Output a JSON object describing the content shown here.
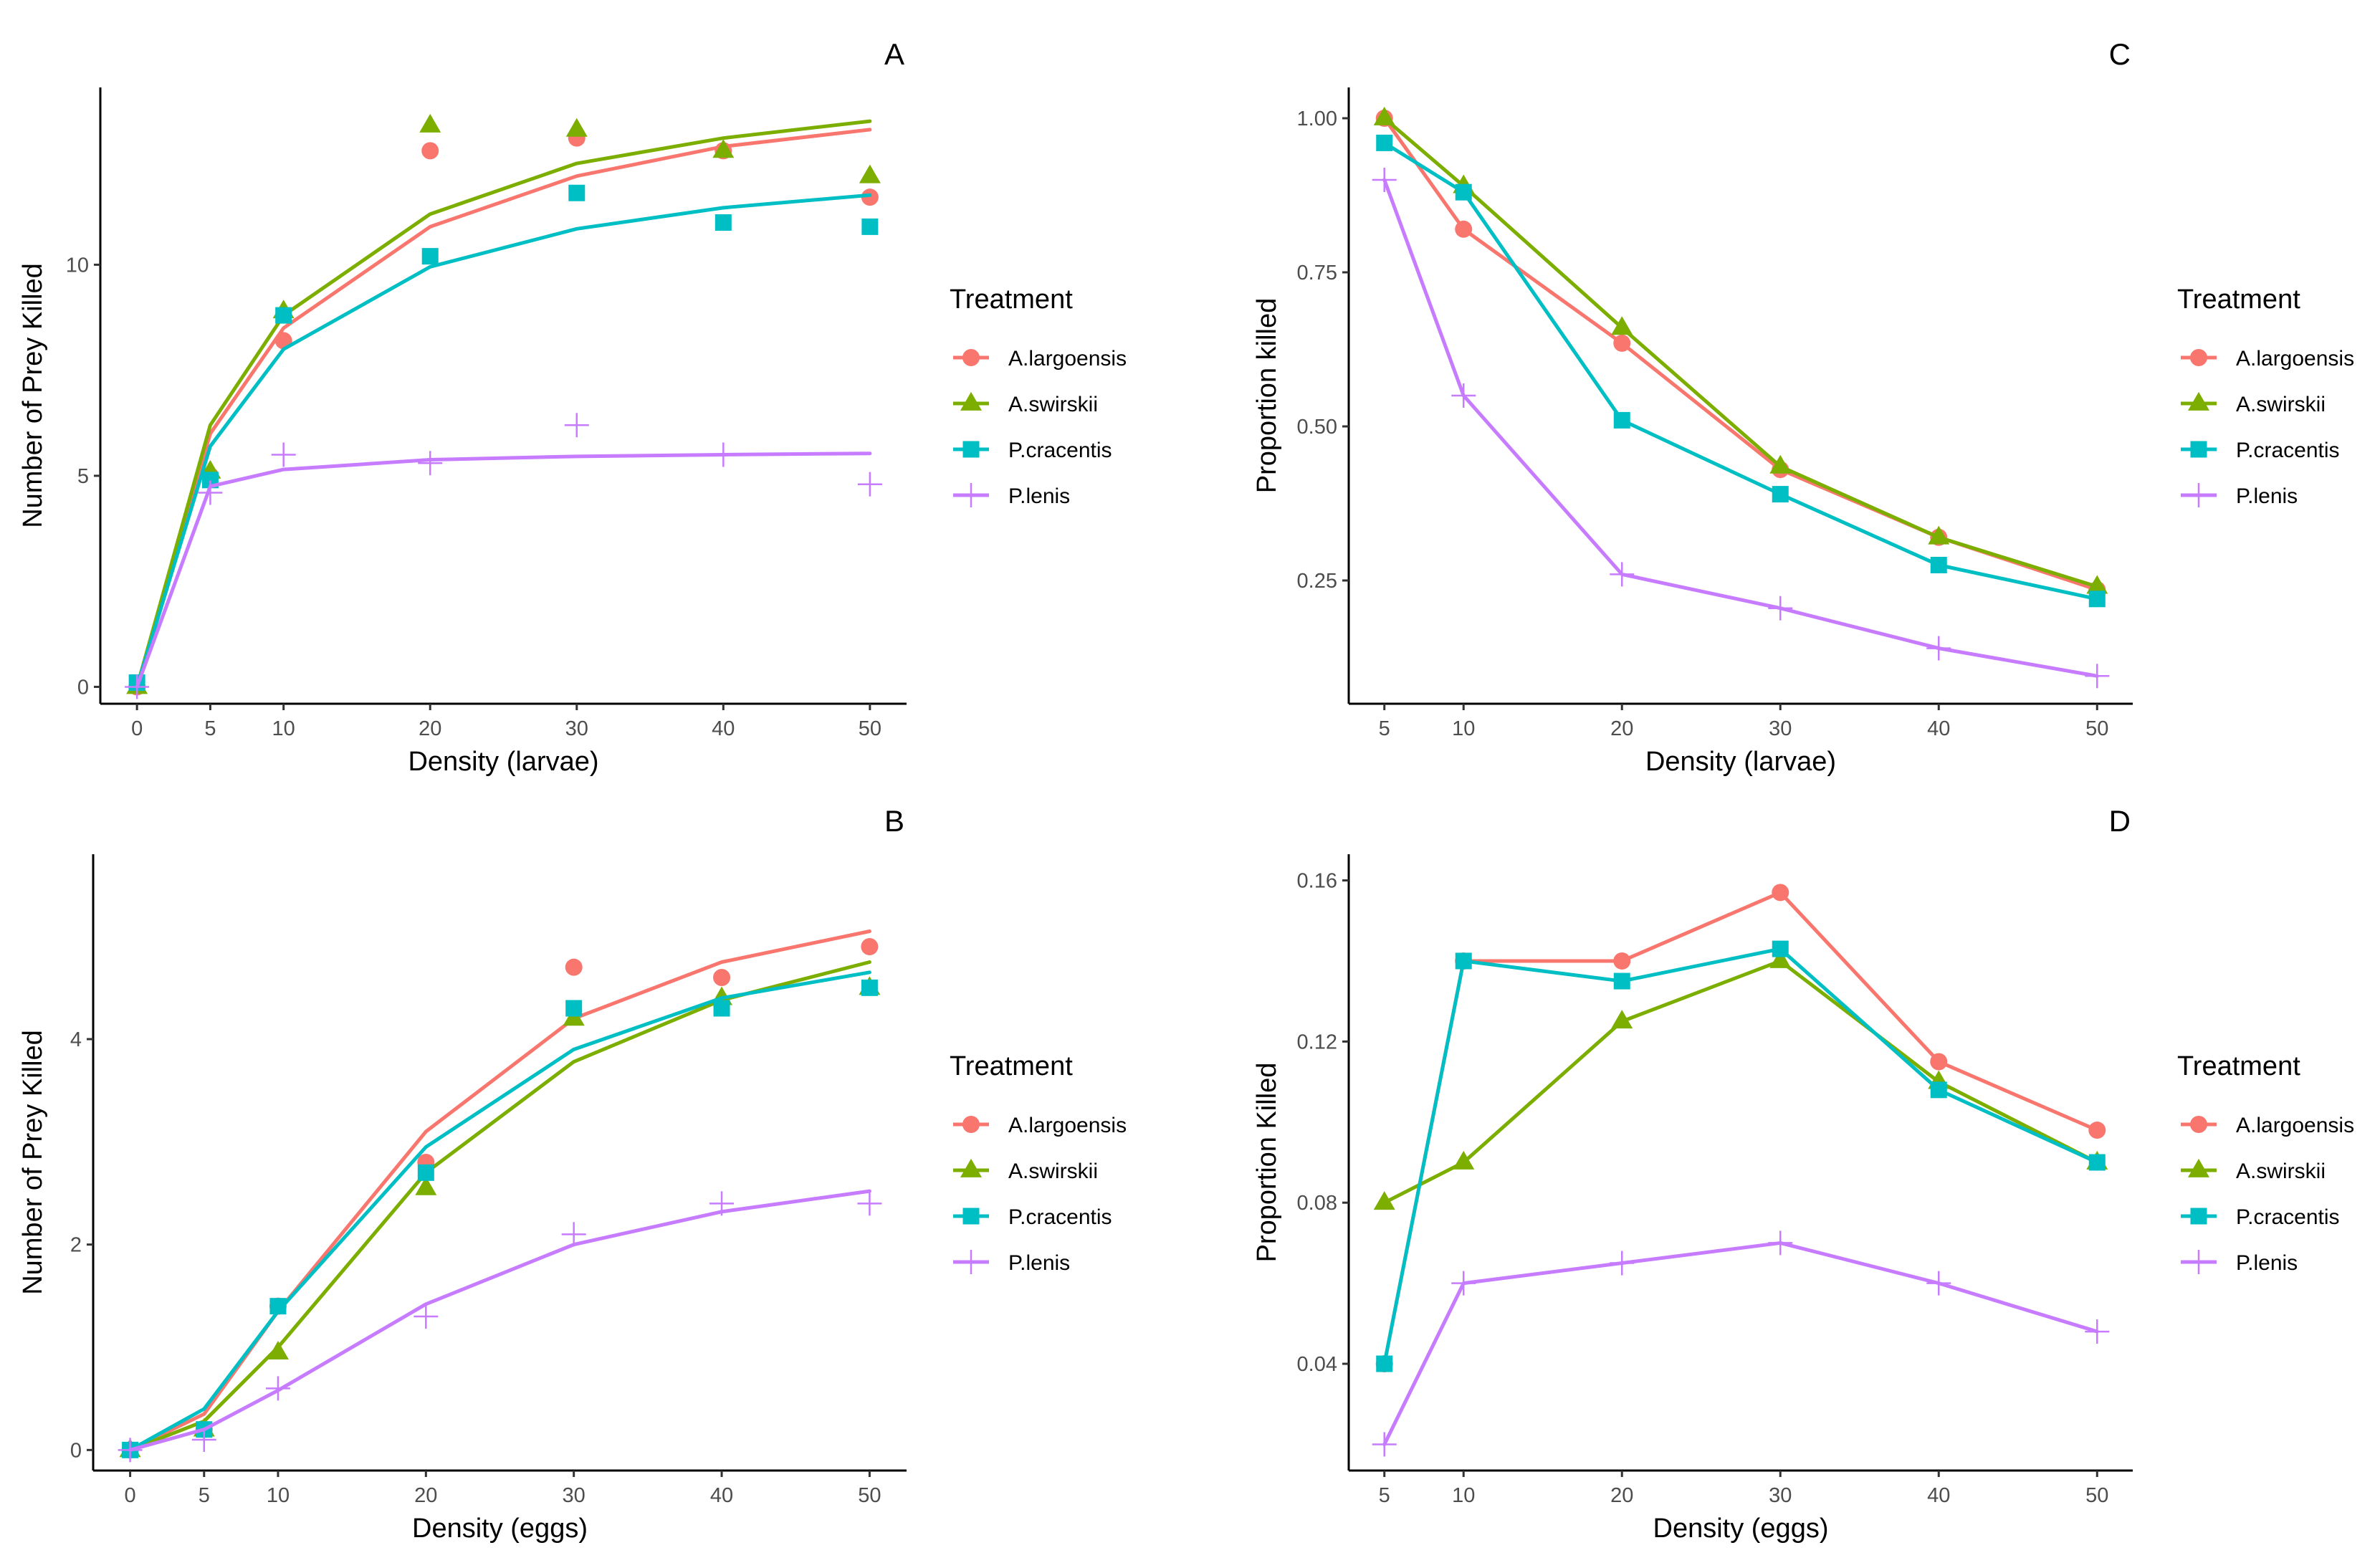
{
  "colors": {
    "A.largoensis": "#F8766D",
    "A.swirskii": "#7CAE00",
    "P.cracentis": "#00BFC4",
    "P.lenis": "#C77CFF"
  },
  "legend": {
    "title": "Treatment",
    "entries": [
      "A.largoensis",
      "A.swirskii",
      "P.cracentis",
      "P.lenis"
    ]
  },
  "chart_data": [
    {
      "id": "A",
      "type": "scatter",
      "tag": "A",
      "xlabel": "Density (larvae)",
      "ylabel": "Number of Prey Killed",
      "xlim": [
        -2.5,
        52.5
      ],
      "ylim": [
        -0.4,
        14.2
      ],
      "xticks": [
        0,
        5,
        10,
        20,
        30,
        40,
        50
      ],
      "yticks": [
        0,
        5,
        10
      ],
      "xtick_labels": [
        "0",
        "5",
        "10",
        "20",
        "30",
        "40",
        "50"
      ],
      "ytick_labels": [
        "0",
        "5",
        "10"
      ],
      "x": [
        0,
        5,
        10,
        20,
        30,
        40,
        50
      ],
      "series": [
        {
          "name": "A.largoensis",
          "marker": "circle",
          "points": [
            0,
            5,
            8.2,
            12.7,
            13,
            12.7,
            11.6
          ],
          "fit": [
            0,
            6.0,
            8.5,
            10.9,
            12.1,
            12.8,
            13.2
          ]
        },
        {
          "name": "A.swirskii",
          "marker": "triangle",
          "points": [
            0,
            5.1,
            8.9,
            13.3,
            13.2,
            12.7,
            12.1
          ],
          "fit": [
            0,
            6.2,
            8.8,
            11.2,
            12.4,
            13.0,
            13.4
          ]
        },
        {
          "name": "P.cracentis",
          "marker": "square",
          "points": [
            0.1,
            4.9,
            8.8,
            10.2,
            11.7,
            11.0,
            10.9
          ],
          "fit": [
            0,
            5.7,
            8.0,
            9.95,
            10.85,
            11.35,
            11.65
          ]
        },
        {
          "name": "P.lenis",
          "marker": "plus",
          "points": [
            0,
            4.6,
            5.5,
            5.3,
            6.2,
            5.5,
            4.8
          ],
          "fit": [
            0,
            4.75,
            5.15,
            5.38,
            5.46,
            5.5,
            5.53
          ]
        }
      ]
    },
    {
      "id": "B",
      "type": "scatter",
      "tag": "B",
      "xlabel": "Density (eggs)",
      "ylabel": "Number of Prey Killed",
      "xlim": [
        -2.5,
        52.5
      ],
      "ylim": [
        -0.2,
        5.8
      ],
      "xticks": [
        0,
        5,
        10,
        20,
        30,
        40,
        50
      ],
      "yticks": [
        0,
        2,
        4
      ],
      "xtick_labels": [
        "0",
        "5",
        "10",
        "20",
        "30",
        "40",
        "50"
      ],
      "ytick_labels": [
        "0",
        "2",
        "4"
      ],
      "x": [
        0,
        5,
        10,
        20,
        30,
        40,
        50
      ],
      "series": [
        {
          "name": "A.largoensis",
          "marker": "circle",
          "points": [
            0,
            0.2,
            1.4,
            2.8,
            4.7,
            4.6,
            4.9
          ],
          "fit": [
            0,
            0.35,
            1.35,
            3.1,
            4.2,
            4.75,
            5.05
          ]
        },
        {
          "name": "A.swirskii",
          "marker": "triangle",
          "points": [
            0,
            0.2,
            0.95,
            2.55,
            4.2,
            4.4,
            4.5
          ],
          "fit": [
            0,
            0.28,
            1.0,
            2.7,
            3.78,
            4.38,
            4.75
          ]
        },
        {
          "name": "P.cracentis",
          "marker": "square",
          "points": [
            0,
            0.2,
            1.4,
            2.7,
            4.3,
            4.3,
            4.5
          ],
          "fit": [
            0,
            0.4,
            1.35,
            2.95,
            3.9,
            4.4,
            4.65
          ]
        },
        {
          "name": "P.lenis",
          "marker": "plus",
          "points": [
            0,
            0.1,
            0.6,
            1.3,
            2.1,
            2.4,
            2.4
          ],
          "fit": [
            0,
            0.2,
            0.58,
            1.42,
            2.0,
            2.32,
            2.52
          ]
        }
      ]
    },
    {
      "id": "C",
      "type": "line",
      "tag": "C",
      "xlabel": "Density (larvae)",
      "ylabel": "Proportion killed",
      "xlim": [
        2.75,
        52.25
      ],
      "ylim": [
        0.05,
        1.05
      ],
      "xticks": [
        5,
        10,
        20,
        30,
        40,
        50
      ],
      "yticks": [
        0.25,
        0.5,
        0.75,
        1.0
      ],
      "xtick_labels": [
        "5",
        "10",
        "20",
        "30",
        "40",
        "50"
      ],
      "ytick_labels": [
        "0.25",
        "0.50",
        "0.75",
        "1.00"
      ],
      "x": [
        5,
        10,
        20,
        30,
        40,
        50
      ],
      "series": [
        {
          "name": "A.largoensis",
          "marker": "circle",
          "values": [
            1.0,
            0.82,
            0.635,
            0.43,
            0.32,
            0.235
          ]
        },
        {
          "name": "A.swirskii",
          "marker": "triangle",
          "values": [
            1.0,
            0.89,
            0.66,
            0.435,
            0.32,
            0.24
          ]
        },
        {
          "name": "P.cracentis",
          "marker": "square",
          "values": [
            0.96,
            0.88,
            0.51,
            0.39,
            0.275,
            0.22
          ]
        },
        {
          "name": "P.lenis",
          "marker": "plus",
          "values": [
            0.9,
            0.55,
            0.26,
            0.205,
            0.14,
            0.095
          ]
        }
      ]
    },
    {
      "id": "D",
      "type": "line",
      "tag": "D",
      "xlabel": "Density (eggs)",
      "ylabel": "Proportion Killed",
      "xlim": [
        2.75,
        52.25
      ],
      "ylim": [
        0.0135,
        0.1665
      ],
      "xticks": [
        5,
        10,
        20,
        30,
        40,
        50
      ],
      "yticks": [
        0.04,
        0.08,
        0.12,
        0.16
      ],
      "xtick_labels": [
        "5",
        "10",
        "20",
        "30",
        "40",
        "50"
      ],
      "ytick_labels": [
        "0.04",
        "0.08",
        "0.12",
        "0.16"
      ],
      "x": [
        5,
        10,
        20,
        30,
        40,
        50
      ],
      "series": [
        {
          "name": "A.largoensis",
          "marker": "circle",
          "values": [
            0.04,
            0.14,
            0.14,
            0.157,
            0.115,
            0.098
          ]
        },
        {
          "name": "A.swirskii",
          "marker": "triangle",
          "values": [
            0.08,
            0.09,
            0.125,
            0.14,
            0.11,
            0.09
          ]
        },
        {
          "name": "P.cracentis",
          "marker": "square",
          "values": [
            0.04,
            0.14,
            0.135,
            0.143,
            0.108,
            0.09
          ]
        },
        {
          "name": "P.lenis",
          "marker": "plus",
          "values": [
            0.02,
            0.06,
            0.065,
            0.07,
            0.06,
            0.048
          ]
        }
      ]
    }
  ]
}
